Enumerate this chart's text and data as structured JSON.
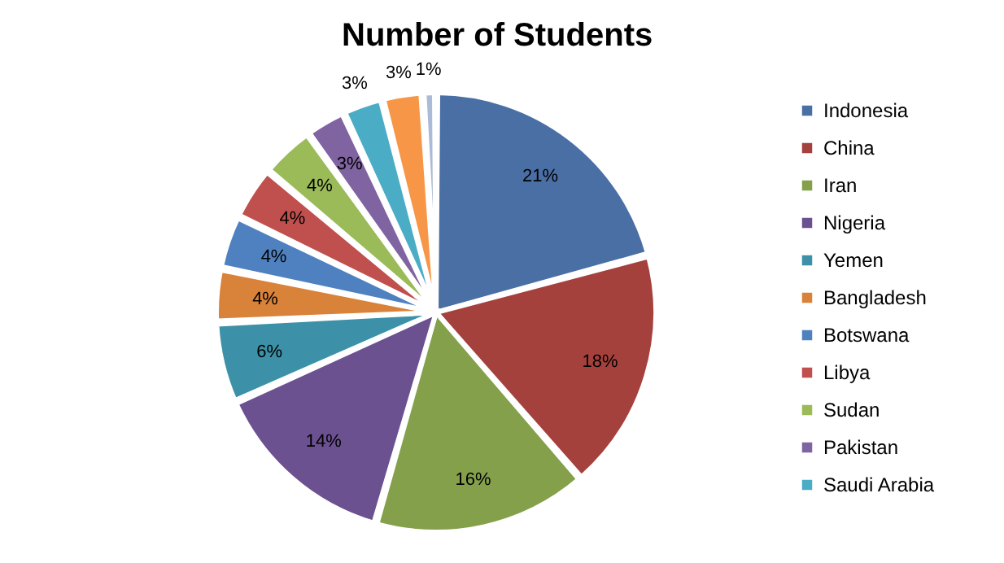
{
  "chart_data": {
    "type": "pie",
    "title": "Number of Students",
    "categories": [
      "Indonesia",
      "China",
      "Iran",
      "Nigeria",
      "Yemen",
      "Bangladesh",
      "Botswana",
      "Libya",
      "Sudan",
      "Pakistan",
      "Saudi Arabia",
      null,
      null
    ],
    "values": [
      21,
      18,
      16,
      14,
      6,
      4,
      4,
      4,
      4,
      3,
      3,
      3,
      1
    ],
    "value_labels": [
      "21%",
      "18%",
      "16%",
      "14%",
      "6%",
      "4%",
      "4%",
      "4%",
      "4%",
      "3%",
      "3%",
      "3%",
      "1%"
    ],
    "colors": [
      "#4a6fa5",
      "#a5413d",
      "#84a04b",
      "#6c5191",
      "#3c91a8",
      "#d9823a",
      "#4f81c0",
      "#c0504d",
      "#9bbb59",
      "#8064a2",
      "#4bacc6",
      "#f79646",
      "#aabad7"
    ],
    "legend": "right"
  }
}
